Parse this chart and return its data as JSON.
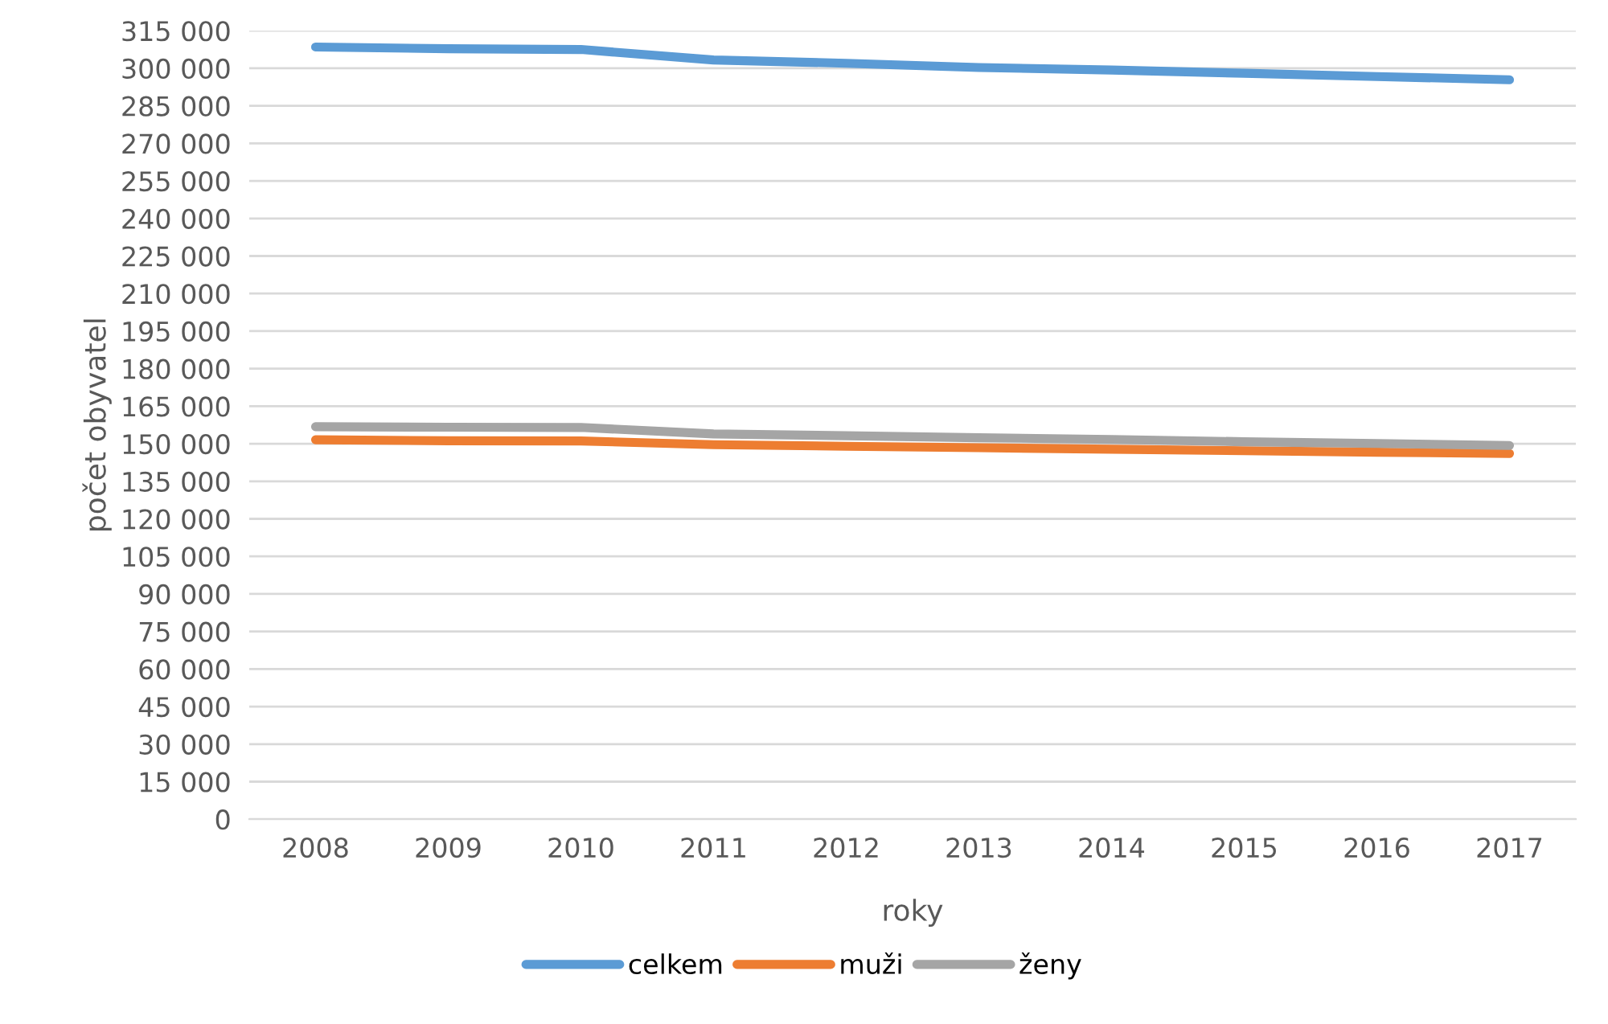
{
  "chart_data": {
    "type": "line",
    "xlabel": "roky",
    "ylabel": "počet obyvatel",
    "categories": [
      "2008",
      "2009",
      "2010",
      "2011",
      "2012",
      "2013",
      "2014",
      "2015",
      "2016",
      "2017"
    ],
    "series": [
      {
        "name": "celkem",
        "color": "#5b9bd5",
        "values": [
          308500,
          307800,
          307500,
          303300,
          302000,
          300300,
          299300,
          298000,
          296700,
          295400
        ]
      },
      {
        "name": "muži",
        "color": "#ed7d31",
        "values": [
          151600,
          151200,
          151100,
          149600,
          149000,
          148400,
          147800,
          147200,
          146600,
          146100
        ]
      },
      {
        "name": "ženy",
        "color": "#a5a5a5",
        "values": [
          156800,
          156600,
          156500,
          153900,
          153200,
          152400,
          151700,
          150800,
          150100,
          149300
        ]
      }
    ],
    "ylim": [
      0,
      315000
    ],
    "yticks": [
      {
        "value": 0,
        "label": "0"
      },
      {
        "value": 15000,
        "label": "15 000"
      },
      {
        "value": 30000,
        "label": "30 000"
      },
      {
        "value": 45000,
        "label": "45 000"
      },
      {
        "value": 60000,
        "label": "60 000"
      },
      {
        "value": 75000,
        "label": "75 000"
      },
      {
        "value": 90000,
        "label": "90 000"
      },
      {
        "value": 105000,
        "label": "105 000"
      },
      {
        "value": 120000,
        "label": "120 000"
      },
      {
        "value": 135000,
        "label": "135 000"
      },
      {
        "value": 150000,
        "label": "150 000"
      },
      {
        "value": 165000,
        "label": "165 000"
      },
      {
        "value": 180000,
        "label": "180 000"
      },
      {
        "value": 195000,
        "label": "195 000"
      },
      {
        "value": 210000,
        "label": "210 000"
      },
      {
        "value": 225000,
        "label": "225 000"
      },
      {
        "value": 240000,
        "label": "240 000"
      },
      {
        "value": 255000,
        "label": "255 000"
      },
      {
        "value": 270000,
        "label": "270 000"
      },
      {
        "value": 285000,
        "label": "285 000"
      },
      {
        "value": 300000,
        "label": "300 000"
      },
      {
        "value": 315000,
        "label": "315 000"
      }
    ],
    "grid": "y",
    "legend": "bottom",
    "marker": "none",
    "line_style": "solid"
  }
}
